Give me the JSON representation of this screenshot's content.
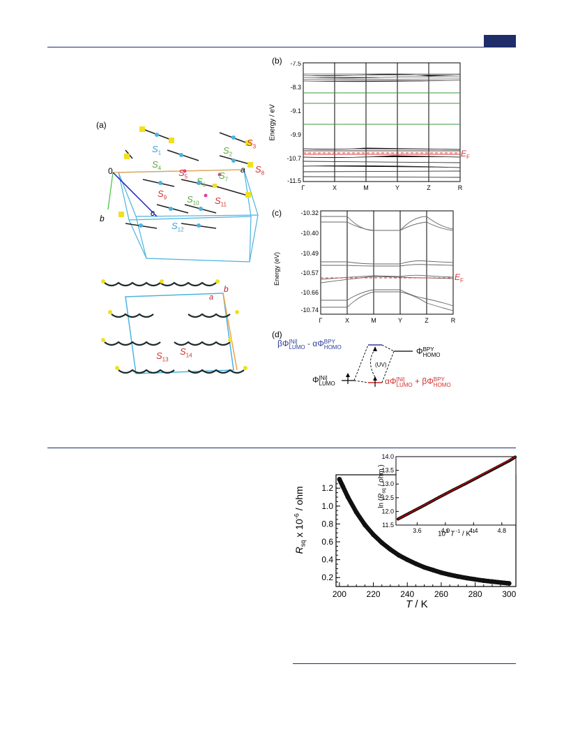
{
  "page": {
    "accent_color": "#1f2d6b"
  },
  "figure_top": {
    "panel_a": {
      "label": "(a)",
      "origin_label": "0",
      "axis_a": "a",
      "axis_b": "b",
      "axis_c": "c",
      "contacts_red": [
        "S3",
        "S6",
        "S8",
        "S9",
        "S11"
      ],
      "contacts_green": [
        "S2",
        "S4",
        "S5",
        "S7",
        "S10"
      ],
      "contacts_blue": [
        "S1",
        "S12"
      ]
    },
    "panel_a2": {
      "axis_b": "b",
      "axis_a": "a",
      "contacts": [
        "S13",
        "S14"
      ]
    },
    "panel_b": {
      "label": "(b)",
      "ylabel": "Energy / eV",
      "yticks": [
        "-7.5",
        "-8.3",
        "-9.1",
        "-9.9",
        "-10.7",
        "-11.5"
      ],
      "xticks": [
        "Γ",
        "X",
        "M",
        "Y",
        "Z",
        "R"
      ],
      "fermi_label": "E",
      "fermi_sub": "F"
    },
    "panel_c": {
      "label": "(c)",
      "ylabel": "Energy (eV)",
      "yticks": [
        "-10.32",
        "-10.40",
        "-10.49",
        "-10.57",
        "-10.66",
        "-10.74"
      ],
      "xticks": [
        "Γ",
        "X",
        "M",
        "Y",
        "Z",
        "R"
      ],
      "fermi_label": "E",
      "fermi_sub": "F"
    },
    "panel_d": {
      "label": "(d)",
      "uv_label": "(UV)",
      "top_combo": "βΦLUMO[Ni] - αΦHOMOBPY",
      "bottom_combo": "αΦLUMO[Ni] + βΦHOMOBPY",
      "left_orbital": "ΦLUMO[Ni]",
      "right_orbital": "ΦHOMOBPY"
    }
  },
  "chart_data": {
    "type": "scatter",
    "xlabel": "T / K",
    "ylabel": "Rsq x 10^-6 / ohm",
    "xticks": [
      "200",
      "220",
      "240",
      "260",
      "280",
      "300"
    ],
    "yticks": [
      "0.2",
      "0.4",
      "0.6",
      "0.8",
      "1.0",
      "1.2"
    ],
    "xlim": [
      198,
      304
    ],
    "ylim": [
      0.1,
      1.35
    ],
    "series": [
      {
        "x": [
          200,
          202,
          205,
          210,
          215,
          220,
          225,
          230,
          235,
          240,
          245,
          250,
          255,
          260,
          265,
          270,
          275,
          280,
          285,
          290,
          295,
          300
        ],
        "y": [
          1.3,
          1.22,
          1.1,
          0.93,
          0.79,
          0.68,
          0.59,
          0.515,
          0.45,
          0.4,
          0.355,
          0.315,
          0.285,
          0.255,
          0.232,
          0.212,
          0.195,
          0.18,
          0.166,
          0.155,
          0.145,
          0.135
        ]
      }
    ],
    "inset": {
      "type": "line",
      "xlabel": "10^3 T^-1 / K^-1",
      "ylabel": "ln (Rsq / ohm)",
      "xticks": [
        "3.6",
        "4.0",
        "4.4",
        "4.8"
      ],
      "yticks": [
        "11.5",
        "12.0",
        "12.5",
        "13.0",
        "13.5",
        "14.0"
      ],
      "xlim": [
        3.3,
        5.0
      ],
      "ylim": [
        11.5,
        14.0
      ],
      "x": [
        3.33,
        3.5,
        3.7,
        3.9,
        4.1,
        4.3,
        4.5,
        4.7,
        4.9,
        5.0
      ],
      "y": [
        11.72,
        11.95,
        12.22,
        12.5,
        12.77,
        13.03,
        13.3,
        13.57,
        13.84,
        14.0
      ],
      "fit_color": "#cc0000"
    }
  }
}
